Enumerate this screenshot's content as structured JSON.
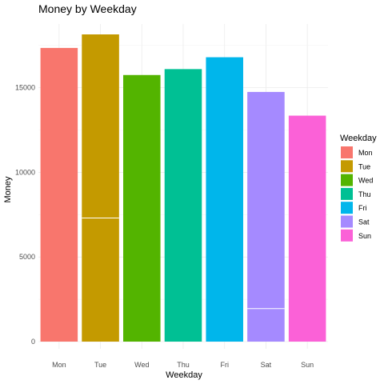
{
  "chart_data": {
    "type": "bar",
    "title": "Money by Weekday",
    "xlabel": "Weekday",
    "ylabel": "Money",
    "categories": [
      "Mon",
      "Tue",
      "Wed",
      "Thu",
      "Fri",
      "Sat",
      "Sun"
    ],
    "values": [
      17350,
      18150,
      15750,
      16100,
      16800,
      14750,
      13350
    ],
    "segment_breaks": [
      [],
      [
        7300
      ],
      [],
      [],
      [],
      [
        1950
      ],
      []
    ],
    "colors": [
      "#F8766D",
      "#C49A00",
      "#53B400",
      "#00C094",
      "#00B6EB",
      "#A58AFF",
      "#FB61D7"
    ],
    "ylim": [
      0,
      19000
    ],
    "yticks": [
      0,
      5000,
      10000,
      15000
    ],
    "ytick_labels": [
      "0",
      "5000",
      "10000",
      "15000"
    ],
    "grid": true,
    "legend": {
      "title": "Weekday",
      "position": "right",
      "labels": [
        "Mon",
        "Tue",
        "Wed",
        "Thu",
        "Fri",
        "Sat",
        "Sun"
      ]
    }
  }
}
